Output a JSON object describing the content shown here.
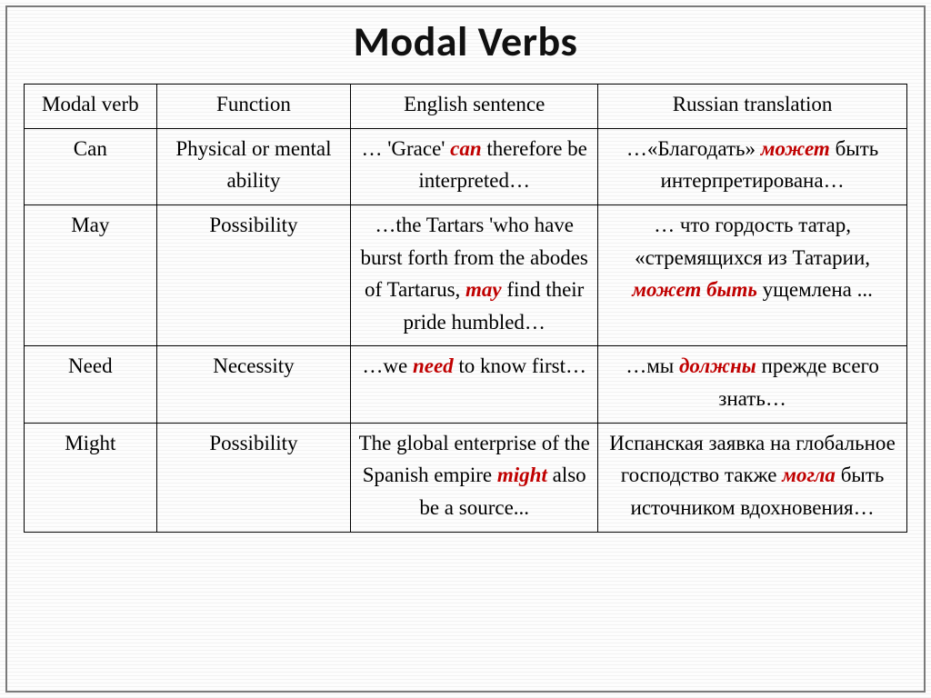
{
  "title": "Modal Verbs",
  "columns": [
    "Modal verb",
    "Function",
    "English sentence",
    "Russian translation"
  ],
  "col_widths_pct": [
    15,
    22,
    28,
    35
  ],
  "emphasis_style": {
    "color": "#c00000",
    "italic": true,
    "bold": true
  },
  "border_color": "#000000",
  "frame_border_color": "#7a7a7a",
  "background_stripe_colors": [
    "#fdfdfd",
    "#f2f2f2"
  ],
  "font_family_body": "Times New Roman",
  "font_family_title": "Calibri",
  "title_fontsize": 46,
  "cell_fontsize": 23,
  "rows": [
    {
      "verb": "Can",
      "function": "Physical or mental ability",
      "english": {
        "pre": "… 'Grace' ",
        "em": "can",
        "post": " therefore be interpreted…"
      },
      "russian": {
        "pre": "…«Благодать» ",
        "em": "может",
        "post": " быть интерпретирована…"
      }
    },
    {
      "verb": "May",
      "function": "Possibility",
      "english": {
        "pre": "…the Tartars 'who have burst forth from the abodes of Tartarus, ",
        "em": "may",
        "post": " find their pride humbled…"
      },
      "russian": {
        "pre": "… что гордость татар, «стремящихся из Татарии, ",
        "em": "может быть",
        "post": " ущемлена ..."
      }
    },
    {
      "verb": "Need",
      "function": "Necessity",
      "english": {
        "pre": "…we ",
        "em": "need",
        "post": " to know first…"
      },
      "russian": {
        "pre": "…мы ",
        "em": "должны",
        "post": " прежде всего знать…"
      }
    },
    {
      "verb": "Might",
      "function": "Possibility",
      "english": {
        "pre": "The global enterprise of the Spanish empire ",
        "em": "might",
        "post": " also be a source..."
      },
      "russian": {
        "pre": "Испанская заявка на глобальное господство также ",
        "em": "могла",
        "post": " быть источником вдохновения…"
      }
    }
  ]
}
